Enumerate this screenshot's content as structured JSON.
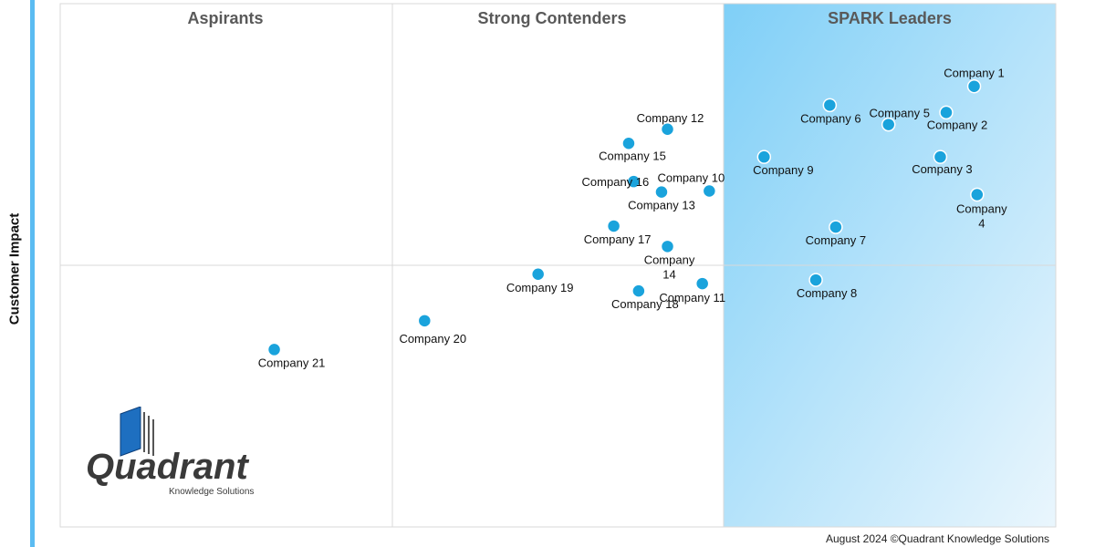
{
  "y_axis_label": "Customer Impact",
  "footer": "August 2024 ©Quadrant Knowledge Solutions",
  "logo": {
    "name": "Quadrant",
    "tagline": "Knowledge Solutions"
  },
  "colors": {
    "point": "#1aa3dc",
    "leader_gradient_start": "#7fcff7",
    "leader_gradient_end": "#e9f6fd",
    "gridline": "#d9d9d9",
    "accent_bar": "#5bbcf2"
  },
  "chart_data": {
    "type": "scatter",
    "quadrant_titles": [
      "Aspirants",
      "Strong Contenders",
      "SPARK Leaders"
    ],
    "ylabel": "Customer Impact",
    "xlim": [
      0,
      100
    ],
    "ylim": [
      0,
      100
    ],
    "grid": true,
    "points": [
      {
        "label": "Company 1",
        "x": 91.8,
        "y": 84.2
      },
      {
        "label": "Company 2",
        "x": 89.0,
        "y": 79.2
      },
      {
        "label": "Company 3",
        "x": 88.4,
        "y": 70.7
      },
      {
        "label": "Company 4",
        "x": 92.1,
        "y": 63.5
      },
      {
        "label": "Company 5",
        "x": 83.2,
        "y": 76.9
      },
      {
        "label": "Company 6",
        "x": 77.3,
        "y": 80.6
      },
      {
        "label": "Company 7",
        "x": 77.9,
        "y": 57.3
      },
      {
        "label": "Company 8",
        "x": 75.9,
        "y": 47.2
      },
      {
        "label": "Company 9",
        "x": 70.7,
        "y": 70.7
      },
      {
        "label": "Company 10",
        "x": 65.2,
        "y": 64.2
      },
      {
        "label": "Company 11",
        "x": 64.5,
        "y": 46.5
      },
      {
        "label": "Company 12",
        "x": 61.0,
        "y": 76.0
      },
      {
        "label": "Company 13",
        "x": 60.4,
        "y": 64.0
      },
      {
        "label": "Company 14",
        "x": 61.0,
        "y": 53.6
      },
      {
        "label": "Company 15",
        "x": 57.1,
        "y": 73.3
      },
      {
        "label": "Company 16",
        "x": 57.6,
        "y": 66.0
      },
      {
        "label": "Company 17",
        "x": 55.6,
        "y": 57.5
      },
      {
        "label": "Company 18",
        "x": 58.1,
        "y": 45.1
      },
      {
        "label": "Company 19",
        "x": 48.0,
        "y": 48.3
      },
      {
        "label": "Company 20",
        "x": 36.6,
        "y": 39.4
      },
      {
        "label": "Company 21",
        "x": 21.5,
        "y": 33.9
      }
    ]
  }
}
